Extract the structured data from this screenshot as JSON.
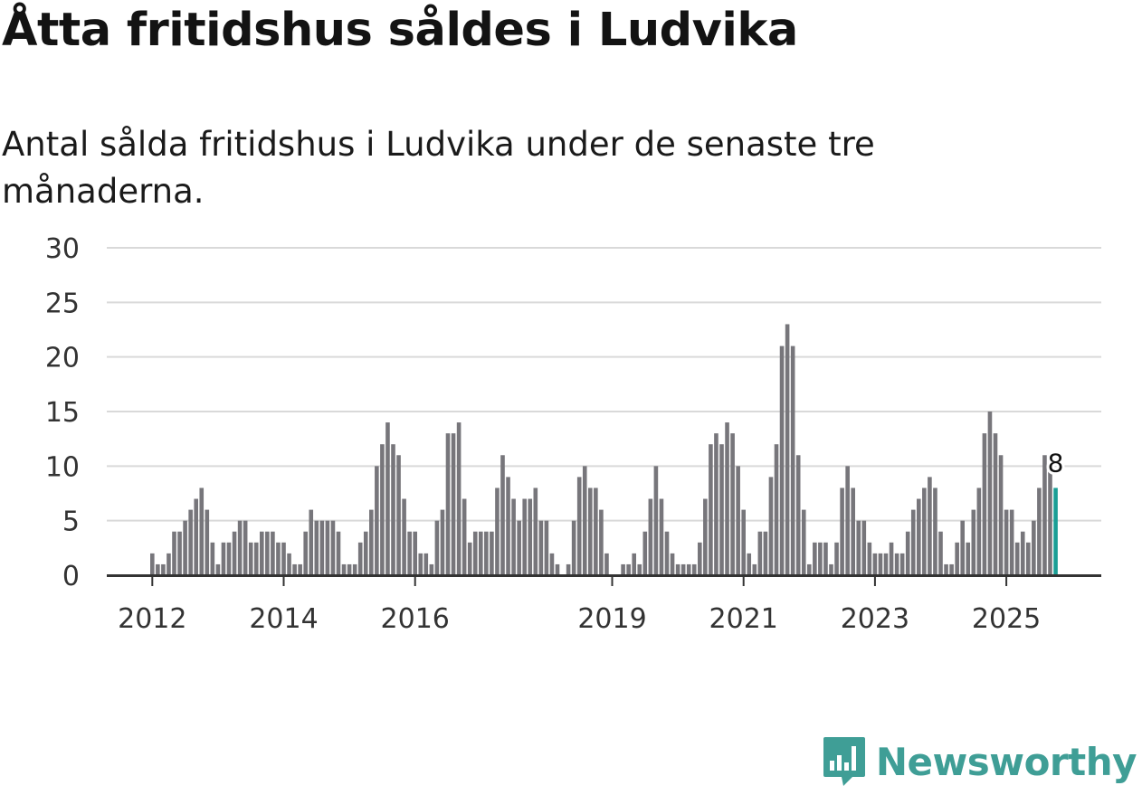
{
  "title": "Åtta fritidshus såldes i Ludvika",
  "subtitle": "Antal sålda fritidshus i Ludvika under de senaste tre månaderna.",
  "brand": {
    "name": "Newsworthy",
    "icon": "newsworthy-logo-icon",
    "color": "#3f9e96"
  },
  "colors": {
    "bar": "#77767b",
    "highlight": "#1a9e95",
    "grid": "#d9d9d9",
    "axis": "#333333"
  },
  "chart_data": {
    "type": "bar",
    "x_start": "2012-01",
    "frequency": "monthly",
    "ylim": [
      0,
      30
    ],
    "yticks": [
      0,
      5,
      10,
      15,
      20,
      25,
      30
    ],
    "xtick_labels": [
      "2012",
      "2014",
      "2016",
      "2019",
      "2021",
      "2023",
      "2025"
    ],
    "grid": true,
    "values": [
      2,
      1,
      1,
      2,
      4,
      4,
      5,
      6,
      7,
      8,
      6,
      3,
      1,
      3,
      3,
      4,
      5,
      5,
      3,
      3,
      4,
      4,
      4,
      3,
      3,
      2,
      1,
      1,
      4,
      6,
      5,
      5,
      5,
      5,
      4,
      1,
      1,
      1,
      3,
      4,
      6,
      10,
      12,
      14,
      12,
      11,
      7,
      4,
      4,
      2,
      2,
      1,
      5,
      6,
      13,
      13,
      14,
      7,
      3,
      4,
      4,
      4,
      4,
      8,
      11,
      9,
      7,
      5,
      7,
      7,
      8,
      5,
      5,
      2,
      1,
      0,
      1,
      5,
      9,
      10,
      8,
      8,
      6,
      2,
      0,
      0,
      1,
      1,
      2,
      1,
      4,
      7,
      10,
      7,
      4,
      2,
      1,
      1,
      1,
      1,
      3,
      7,
      12,
      13,
      12,
      14,
      13,
      10,
      6,
      2,
      1,
      4,
      4,
      9,
      12,
      21,
      23,
      21,
      11,
      6,
      1,
      3,
      3,
      3,
      1,
      3,
      8,
      10,
      8,
      5,
      5,
      3,
      2,
      2,
      2,
      3,
      2,
      2,
      4,
      6,
      7,
      8,
      9,
      8,
      4,
      1,
      1,
      3,
      5,
      3,
      6,
      8,
      13,
      15,
      13,
      11,
      6,
      6,
      3,
      4,
      3,
      5,
      8,
      11,
      10,
      8
    ],
    "highlight_last": true,
    "last_value_label": "8"
  }
}
